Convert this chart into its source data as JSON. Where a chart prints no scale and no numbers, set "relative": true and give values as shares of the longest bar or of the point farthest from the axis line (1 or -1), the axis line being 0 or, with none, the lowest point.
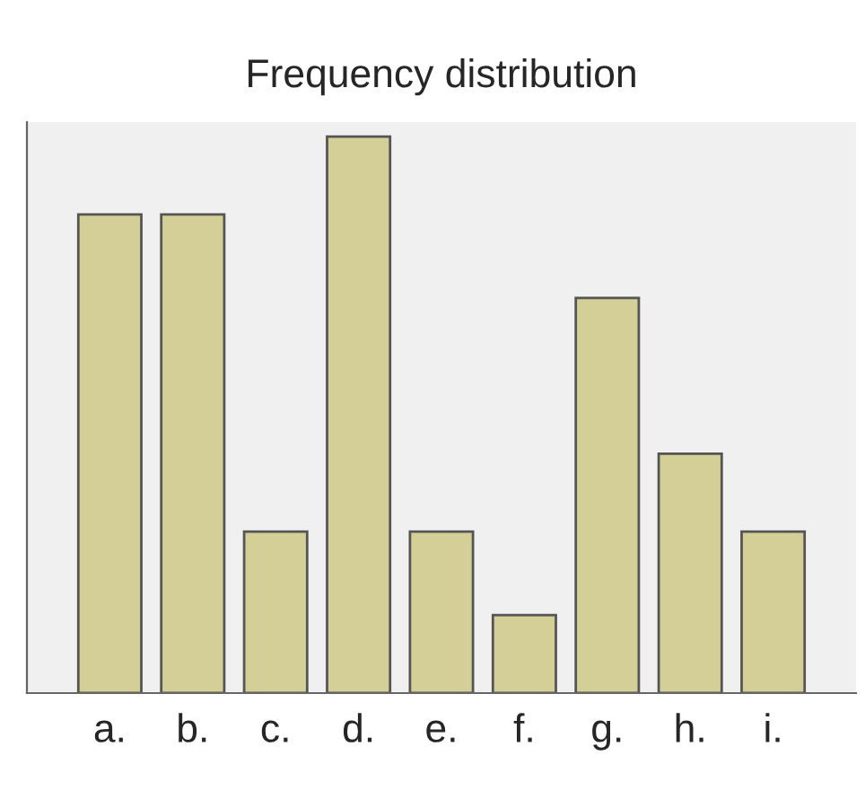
{
  "chart_data": {
    "type": "bar",
    "title": "Frequency distribution",
    "relative": true,
    "categories": [
      "a.",
      "b.",
      "c.",
      "d.",
      "e.",
      "f.",
      "g.",
      "h.",
      "i."
    ],
    "values": [
      0.86,
      0.86,
      0.29,
      1,
      0.29,
      0.14,
      0.71,
      0.43,
      0.29
    ],
    "color": "#d3cf96",
    "grid": false,
    "legend": false
  }
}
